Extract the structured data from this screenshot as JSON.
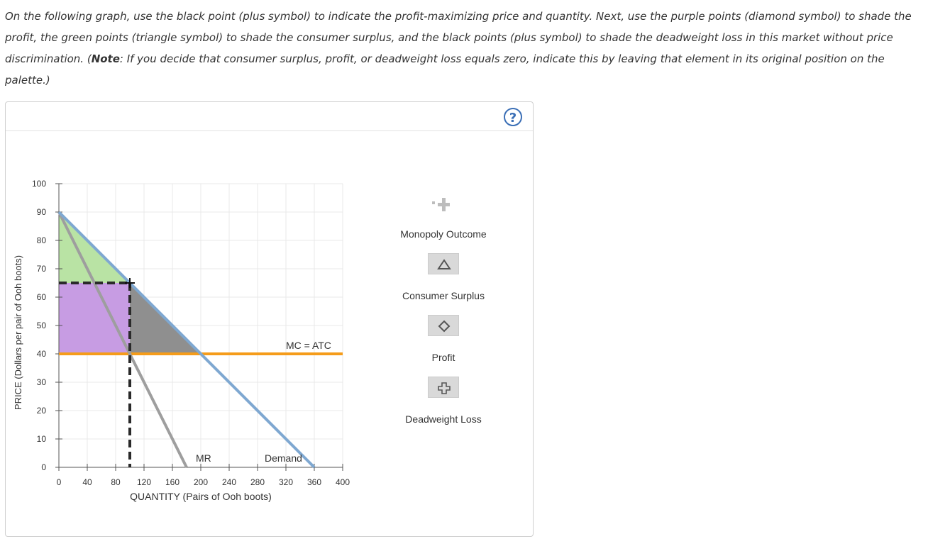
{
  "instructions": {
    "part1": "On the following graph, use the black point (plus symbol) to indicate the profit-maximizing price and quantity. Next, use the purple points (diamond symbol) to shade the profit, the green points (triangle symbol) to shade the consumer surplus, and the black points (plus symbol) to shade the deadweight loss in this market without price discrimination. (",
    "note_bold": "Note",
    "part2": ": If you decide that consumer surplus, profit, or deadweight loss equals zero, indicate this by leaving that element in its original position on the palette.)"
  },
  "help": {
    "label": "?"
  },
  "palette": {
    "monopoly_outcome": "Monopoly Outcome",
    "consumer_surplus": "Consumer Surplus",
    "profit": "Profit",
    "deadweight_loss": "Deadweight Loss"
  },
  "colors": {
    "demand": "#7fa8d1",
    "mr": "#9e9e9e",
    "mc": "#f59c1a",
    "consumer_surplus": "#b9e3a4",
    "profit": "#c79ce3",
    "deadweight_loss": "#8f8f8f",
    "grid": "#e8e8e8",
    "axis": "#555555",
    "dashed": "#2a2a2a"
  },
  "chart_data": {
    "type": "line",
    "xlabel": "QUANTITY (Pairs of Ooh boots)",
    "ylabel": "PRICE (Dollars per pair of Ooh boots)",
    "xlim": [
      0,
      400
    ],
    "ylim": [
      0,
      100
    ],
    "xticks": [
      0,
      40,
      80,
      120,
      160,
      200,
      240,
      280,
      320,
      360,
      400
    ],
    "yticks": [
      0,
      10,
      20,
      30,
      40,
      50,
      60,
      70,
      80,
      90,
      100
    ],
    "grid": true,
    "series": [
      {
        "name": "Demand",
        "points": [
          [
            0,
            90
          ],
          [
            360,
            0
          ]
        ]
      },
      {
        "name": "MR",
        "points": [
          [
            0,
            90
          ],
          [
            180,
            0
          ]
        ]
      },
      {
        "name": "MC = ATC",
        "points": [
          [
            0,
            40
          ],
          [
            400,
            40
          ]
        ]
      }
    ],
    "monopoly_point": {
      "quantity": 100,
      "price": 65
    },
    "areas": {
      "consumer_surplus": [
        [
          0,
          90
        ],
        [
          0,
          65
        ],
        [
          100,
          65
        ]
      ],
      "profit": [
        [
          0,
          65
        ],
        [
          100,
          65
        ],
        [
          100,
          40
        ],
        [
          0,
          40
        ]
      ],
      "deadweight_loss": [
        [
          100,
          65
        ],
        [
          100,
          40
        ],
        [
          200,
          40
        ]
      ]
    }
  }
}
